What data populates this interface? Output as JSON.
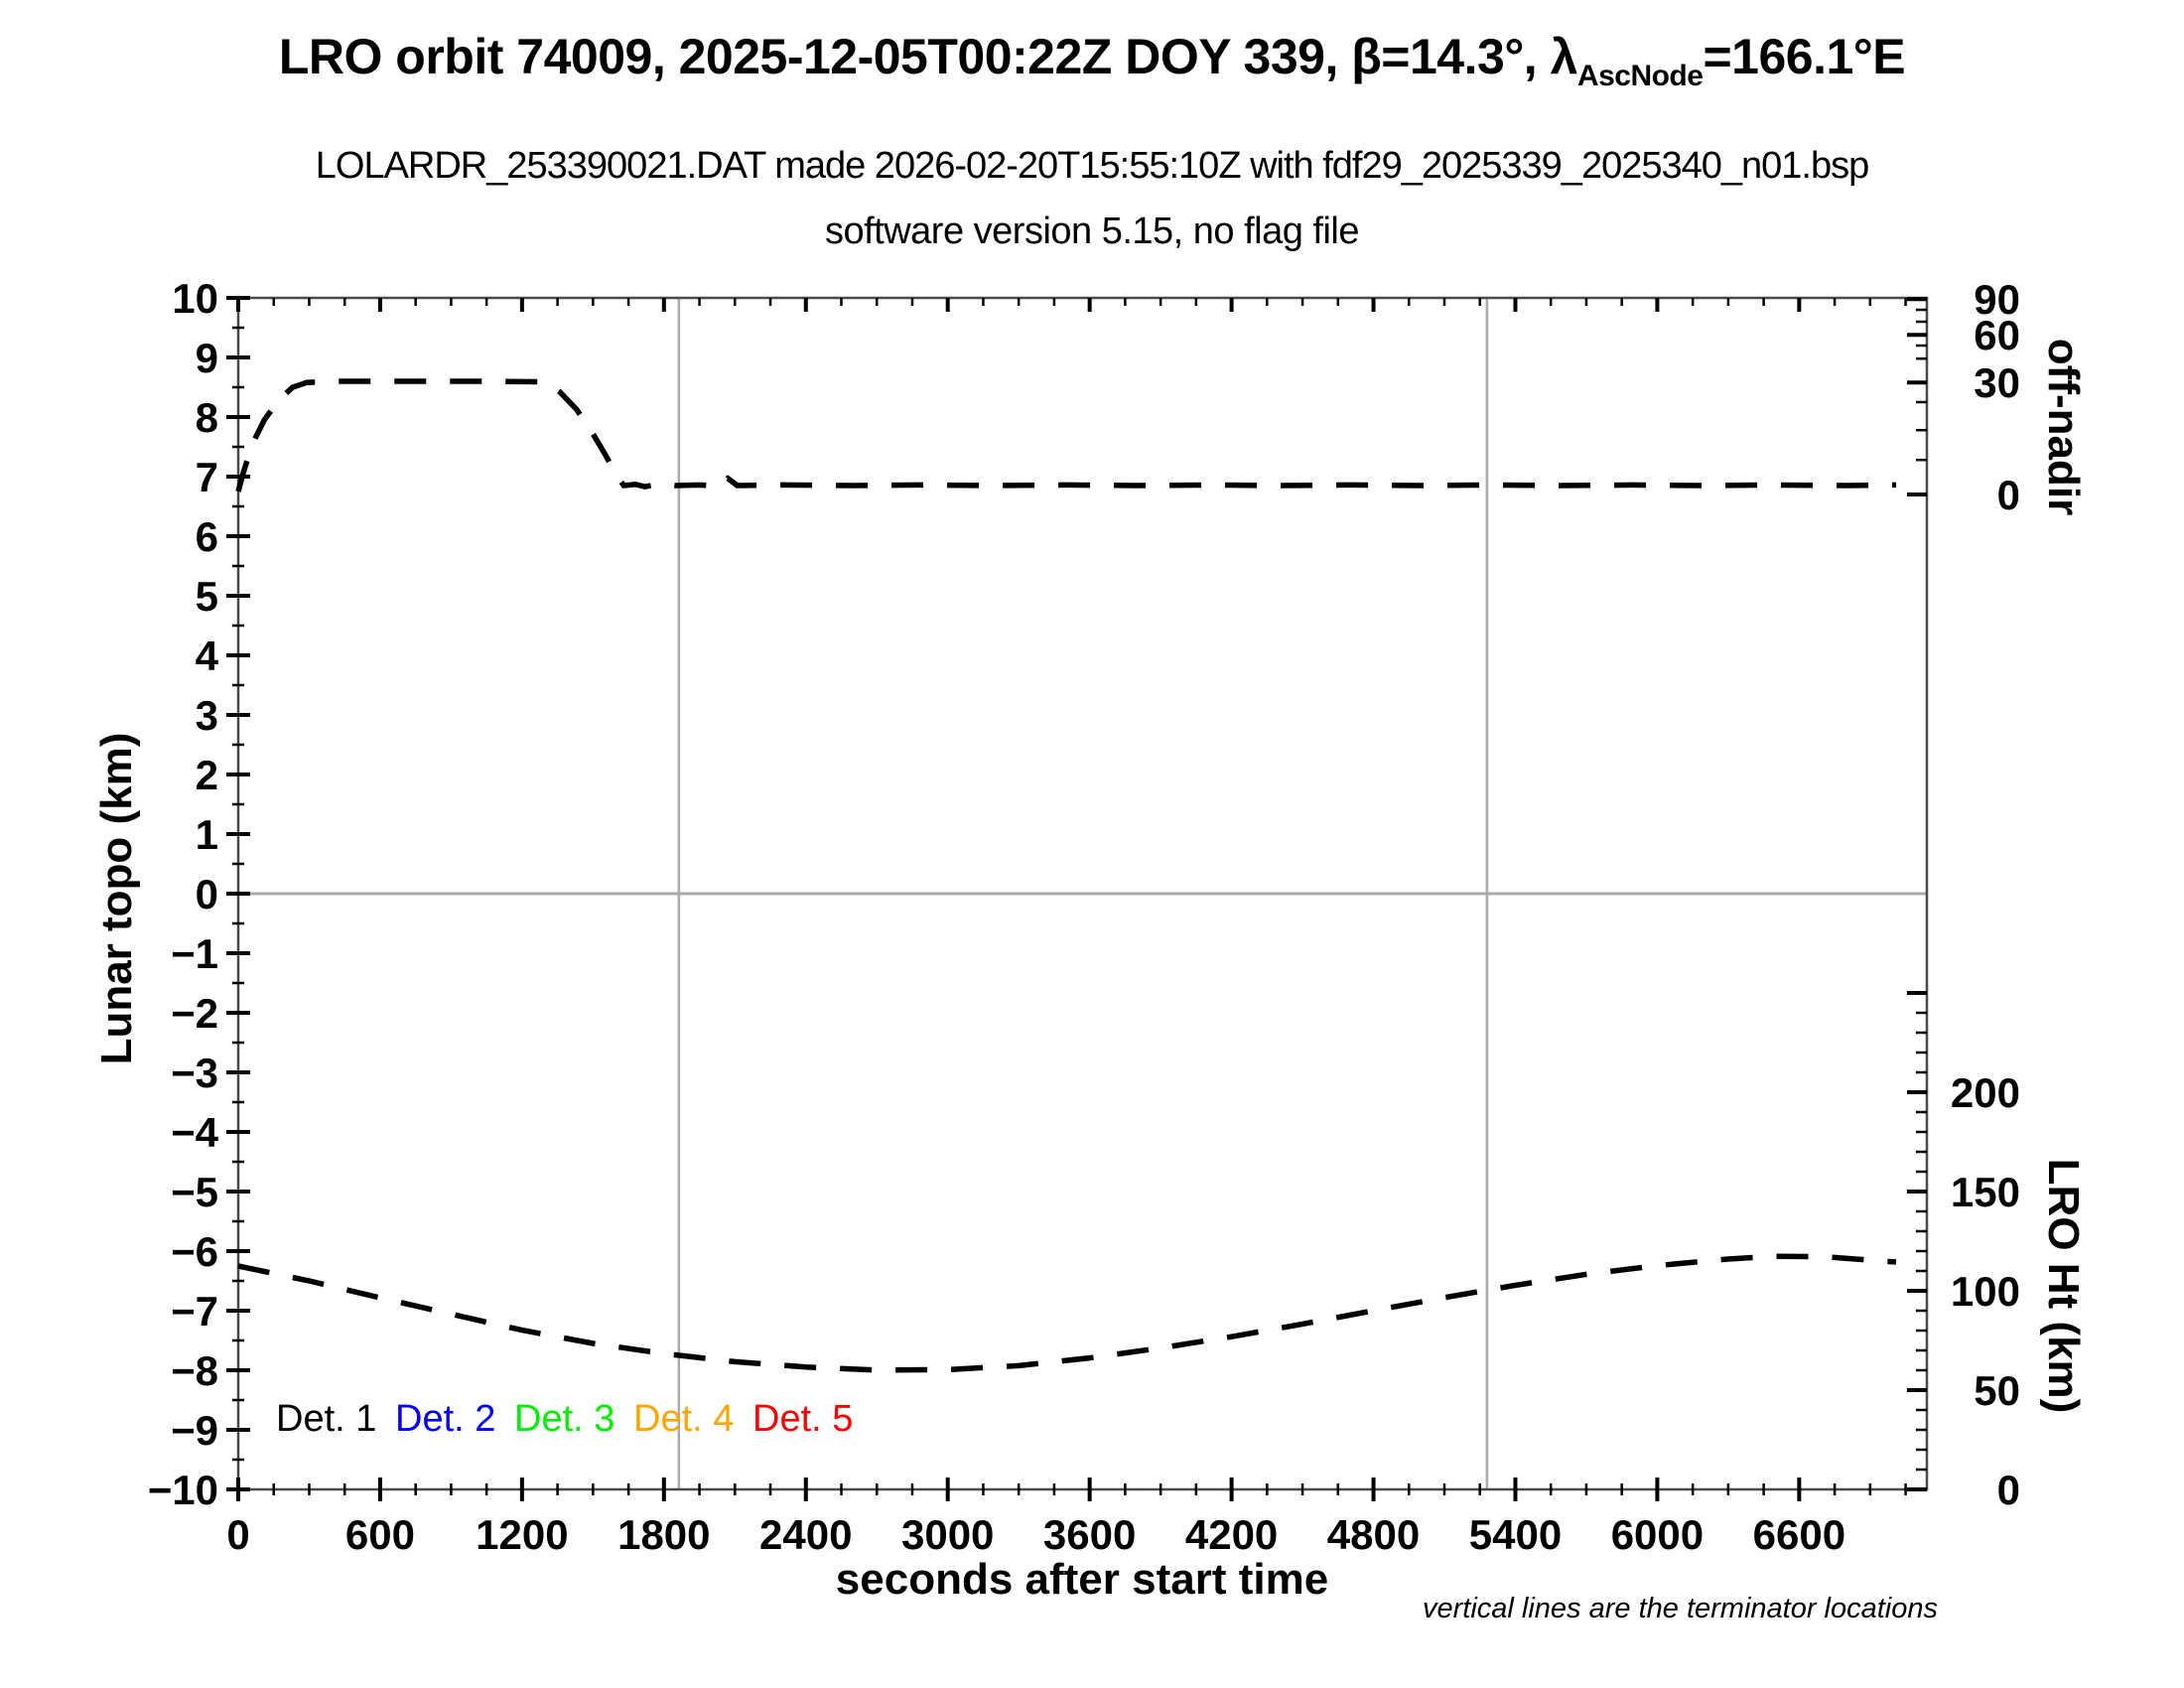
{
  "header": {
    "title_part1": "LRO orbit 74009, 2025-12-05T00:22Z DOY 339, ",
    "title_beta": "β=14.3°, ",
    "title_lambda": "λ",
    "title_lambda_sub": "AscNode",
    "title_lambda_rest": "=166.1°E",
    "subtitle1": "LOLARDR_253390021.DAT made 2026-02-20T15:55:10Z with fdf29_2025339_2025340_n01.bsp",
    "subtitle2": "software version 5.15, no flag file"
  },
  "footnote": "vertical lines are the terminator locations",
  "chart_data": {
    "type": "line",
    "title": "LRO orbit 74009, 2025-12-05T00:22Z DOY 339, beta=14.3deg, lambda_AscNode=166.1degE",
    "xlabel": "seconds after start time",
    "x_axis": {
      "range": [
        0,
        7140
      ],
      "major_tick_step": 600,
      "minor_tick_step": 150,
      "major_tick_labels": [
        "0",
        "600",
        "1200",
        "1800",
        "2400",
        "3000",
        "3600",
        "4200",
        "4800",
        "5400",
        "6000",
        "6600"
      ]
    },
    "y_left_axis": {
      "label": "Lunar topo (km)",
      "range": [
        -10,
        10
      ],
      "major_tick_step": 1,
      "minor_tick_step": 0.5,
      "tick_labels": [
        "10",
        "9",
        "8",
        "7",
        "6",
        "5",
        "4",
        "3",
        "2",
        "1",
        "0",
        "−1",
        "−2",
        "−3",
        "−4",
        "−5",
        "−6",
        "−7",
        "−8",
        "−9",
        "−10"
      ]
    },
    "y_right_top_axis": {
      "label": "off-nadir",
      "units": "degrees",
      "major_ticks": [
        {
          "label": "90",
          "u": 9.98
        },
        {
          "label": "60",
          "u": 9.38
        },
        {
          "label": "30",
          "u": 8.58
        },
        {
          "label": "0",
          "u": 6.7
        }
      ],
      "minor_ticks_u": [
        9.8,
        9.6,
        9.2,
        8.98,
        8.25,
        7.78,
        7.28
      ]
    },
    "y_right_bottom_axis": {
      "label": "LRO Ht (km)",
      "units": "km",
      "km_at_u_minus10": 0,
      "km_per_left_unit": 30,
      "major_tick_labels": [
        "200",
        "150",
        "100",
        "50",
        "0"
      ],
      "major_tick_km": [
        200,
        150,
        100,
        50,
        0
      ],
      "minor_tick_km_step": 10,
      "minor_tick_km_max": 250
    },
    "terminator_lines_s": [
      1863,
      5280
    ],
    "zero_line_u": 0,
    "grid_color": "#aaaaaa",
    "legend": [
      {
        "label": "Det. 1",
        "color": "#000000"
      },
      {
        "label": "Det. 2",
        "color": "#0000ff"
      },
      {
        "label": "Det. 3",
        "color": "#00ee00"
      },
      {
        "label": "Det. 4",
        "color": "#ffa500"
      },
      {
        "label": "Det. 5",
        "color": "#ff0000"
      }
    ],
    "series": [
      {
        "name": "spacecraft off-nadir angle",
        "color": "#000000",
        "style": "dashed",
        "units": "left-axis-units",
        "summary_deg": {
          "t_s": [
            0,
            120,
            240,
            600,
            1200,
            1300,
            1440,
            1560,
            1650,
            2400,
            3600,
            4800,
            6000,
            7010
          ],
          "deg": [
            1,
            20,
            29,
            30,
            30,
            30,
            22,
            9,
            0.5,
            0.5,
            0.5,
            0.5,
            0.5,
            0.5
          ]
        },
        "points": [
          [
            0,
            6.75
          ],
          [
            20,
            7.05
          ],
          [
            60,
            7.55
          ],
          [
            110,
            7.95
          ],
          [
            170,
            8.28
          ],
          [
            230,
            8.5
          ],
          [
            290,
            8.58
          ],
          [
            400,
            8.6
          ],
          [
            700,
            8.6
          ],
          [
            1000,
            8.6
          ],
          [
            1290,
            8.59
          ],
          [
            1360,
            8.42
          ],
          [
            1430,
            8.13
          ],
          [
            1495,
            7.75
          ],
          [
            1550,
            7.38
          ],
          [
            1600,
            7.02
          ],
          [
            1630,
            6.85
          ],
          [
            1680,
            6.87
          ],
          [
            1720,
            6.83
          ],
          [
            1780,
            6.88
          ],
          [
            1850,
            6.85
          ],
          [
            1950,
            6.86
          ],
          [
            2030,
            6.84
          ],
          [
            2070,
            6.97
          ],
          [
            2110,
            6.85
          ],
          [
            2300,
            6.86
          ],
          [
            2600,
            6.85
          ],
          [
            2900,
            6.86
          ],
          [
            3200,
            6.85
          ],
          [
            3500,
            6.86
          ],
          [
            3800,
            6.85
          ],
          [
            4100,
            6.86
          ],
          [
            4400,
            6.85
          ],
          [
            4700,
            6.86
          ],
          [
            5000,
            6.85
          ],
          [
            5300,
            6.86
          ],
          [
            5600,
            6.85
          ],
          [
            5900,
            6.86
          ],
          [
            6200,
            6.85
          ],
          [
            6500,
            6.86
          ],
          [
            6800,
            6.85
          ],
          [
            7010,
            6.86
          ]
        ]
      },
      {
        "name": "LRO height above surface",
        "color": "#000000",
        "style": "dashed",
        "units": "km",
        "points_km": [
          [
            0,
            112.5
          ],
          [
            300,
            105.0
          ],
          [
            600,
            96.5
          ],
          [
            900,
            88.3
          ],
          [
            1200,
            80.2
          ],
          [
            1500,
            73.5
          ],
          [
            1800,
            68.4
          ],
          [
            2100,
            64.3
          ],
          [
            2400,
            61.6
          ],
          [
            2700,
            60.1
          ],
          [
            3000,
            60.3
          ],
          [
            3300,
            62.3
          ],
          [
            3600,
            66.2
          ],
          [
            3900,
            71.2
          ],
          [
            4200,
            76.9
          ],
          [
            4500,
            83.3
          ],
          [
            4800,
            90.0
          ],
          [
            5100,
            96.6
          ],
          [
            5400,
            102.8
          ],
          [
            5700,
            108.3
          ],
          [
            6000,
            112.7
          ],
          [
            6300,
            116.0
          ],
          [
            6500,
            117.4
          ],
          [
            6700,
            117.2
          ],
          [
            7010,
            114.5
          ]
        ]
      }
    ]
  }
}
